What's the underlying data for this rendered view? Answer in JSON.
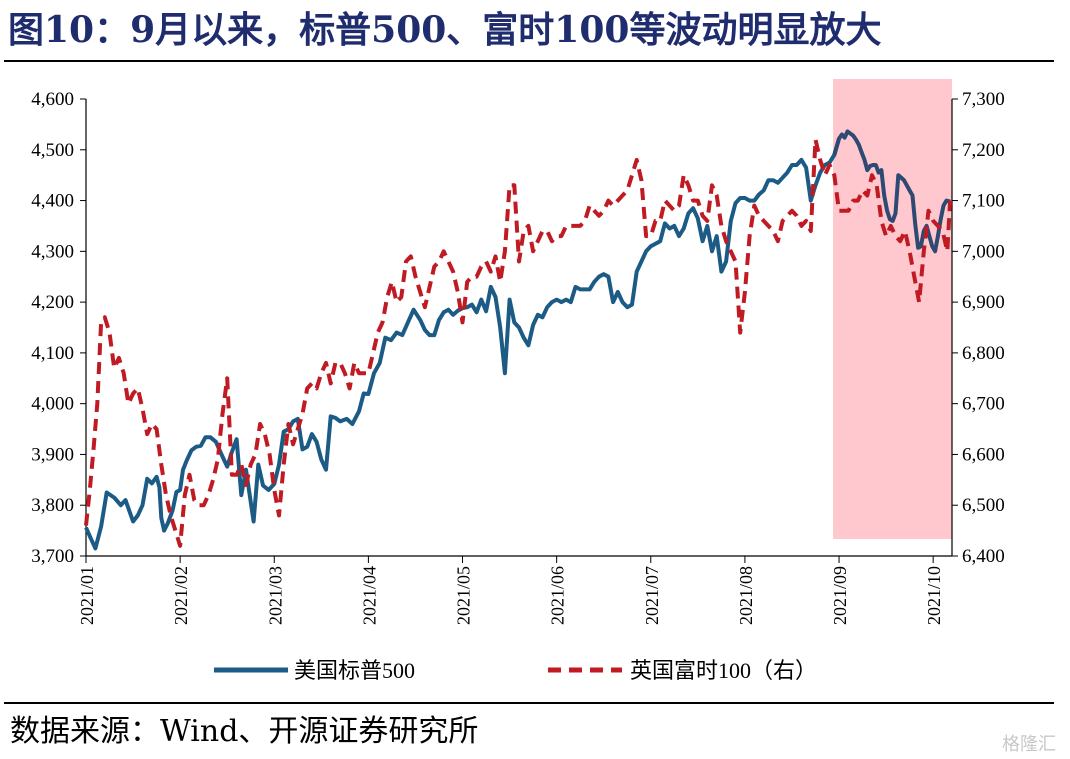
{
  "header": {
    "title": "图10：9月以来，标普500、富时100等波动明显放大"
  },
  "footer": {
    "source": "数据来源：Wind、开源证券研究所",
    "watermark": "格隆汇"
  },
  "chart_data": {
    "type": "line",
    "title": "",
    "x_labels": [
      "2021/01",
      "2021/02",
      "2021/03",
      "2021/04",
      "2021/05",
      "2021/06",
      "2021/07",
      "2021/08",
      "2021/09",
      "2021/10"
    ],
    "left_axis": {
      "ticks": [
        "3,700",
        "3,800",
        "3,900",
        "4,000",
        "4,100",
        "4,200",
        "4,300",
        "4,400",
        "4,500",
        "4,600"
      ],
      "ylim": [
        3700,
        4600
      ]
    },
    "right_axis": {
      "ticks": [
        "6,400",
        "6,500",
        "6,600",
        "6,700",
        "6,800",
        "6,900",
        "7,000",
        "7,100",
        "7,200",
        "7,300"
      ],
      "ylim": [
        6400,
        7300
      ]
    },
    "highlight": {
      "from": "2021/09",
      "to": "2021/10",
      "color": "#ffc7ce"
    },
    "legend_position": "bottom",
    "series": [
      {
        "name": "美国标普500",
        "axis": "left",
        "color": "#1c5b86",
        "color_highlight": "#2e4a72",
        "style": "solid",
        "x": [
          0,
          0.05,
          0.1,
          0.16,
          0.22,
          0.3,
          0.37,
          0.42,
          0.5,
          0.55,
          0.6,
          0.65,
          0.7,
          0.75,
          0.78,
          0.8,
          0.83,
          0.87,
          0.92,
          0.96,
          1.0,
          1.03,
          1.07,
          1.12,
          1.17,
          1.22,
          1.27,
          1.32,
          1.38,
          1.44,
          1.5,
          1.55,
          1.6,
          1.65,
          1.7,
          1.78,
          1.83,
          1.88,
          1.94,
          2.0,
          2.05,
          2.1,
          2.15,
          2.2,
          2.25,
          2.3,
          2.35,
          2.4,
          2.45,
          2.5,
          2.55,
          2.6,
          2.65,
          2.7,
          2.77,
          2.83,
          2.9,
          2.95,
          3.0,
          3.06,
          3.12,
          3.18,
          3.24,
          3.3,
          3.36,
          3.42,
          3.48,
          3.55,
          3.6,
          3.65,
          3.7,
          3.75,
          3.8,
          3.85,
          3.9,
          3.95,
          4.0,
          4.05,
          4.1,
          4.15,
          4.2,
          4.25,
          4.3,
          4.35,
          4.4,
          4.45,
          4.5,
          4.55,
          4.6,
          4.65,
          4.7,
          4.75,
          4.8,
          4.85,
          4.9,
          4.95,
          5.0,
          5.05,
          5.1,
          5.15,
          5.2,
          5.25,
          5.3,
          5.35,
          5.4,
          5.45,
          5.5,
          5.55,
          5.6,
          5.65,
          5.7,
          5.75,
          5.8,
          5.85,
          5.9,
          5.95,
          6.0,
          6.05,
          6.1,
          6.15,
          6.2,
          6.25,
          6.3,
          6.35,
          6.4,
          6.45,
          6.5,
          6.55,
          6.6,
          6.65,
          6.7,
          6.75,
          6.8,
          6.85,
          6.9,
          6.95,
          7.0,
          7.05,
          7.1,
          7.15,
          7.2,
          7.25,
          7.3,
          7.35,
          7.4,
          7.45,
          7.5,
          7.55,
          7.6,
          7.65,
          7.7,
          7.75,
          7.8,
          7.85,
          7.9,
          7.95,
          8.0,
          8.03,
          8.06,
          8.09,
          8.12,
          8.15,
          8.18,
          8.21,
          8.24,
          8.27,
          8.3,
          8.33,
          8.36,
          8.39,
          8.42,
          8.45,
          8.48,
          8.51,
          8.54,
          8.57,
          8.6,
          8.63,
          8.66,
          8.69,
          8.72,
          8.75,
          8.78,
          8.81,
          8.84,
          8.87,
          8.9,
          8.93,
          8.96,
          8.99,
          9.02,
          9.05,
          9.08,
          9.11,
          9.14,
          9.18
        ],
        "values": [
          3756,
          3735,
          3715,
          3758,
          3825,
          3815,
          3800,
          3810,
          3768,
          3780,
          3800,
          3852,
          3843,
          3856,
          3835,
          3775,
          3750,
          3765,
          3790,
          3826,
          3830,
          3870,
          3888,
          3908,
          3915,
          3917,
          3934,
          3934,
          3925,
          3900,
          3876,
          3905,
          3930,
          3820,
          3870,
          3768,
          3880,
          3839,
          3830,
          3842,
          3880,
          3945,
          3950,
          3965,
          3970,
          3910,
          3915,
          3940,
          3925,
          3890,
          3870,
          3975,
          3972,
          3965,
          3970,
          3960,
          3985,
          4020,
          4019,
          4060,
          4080,
          4130,
          4125,
          4140,
          4135,
          4160,
          4185,
          4165,
          4145,
          4135,
          4135,
          4165,
          4180,
          4185,
          4175,
          4183,
          4188,
          4190,
          4195,
          4180,
          4205,
          4182,
          4230,
          4210,
          4150,
          4060,
          4205,
          4160,
          4150,
          4130,
          4115,
          4155,
          4175,
          4170,
          4190,
          4200,
          4205,
          4200,
          4205,
          4200,
          4230,
          4225,
          4225,
          4225,
          4240,
          4250,
          4255,
          4250,
          4200,
          4220,
          4200,
          4190,
          4195,
          4260,
          4280,
          4300,
          4310,
          4315,
          4320,
          4355,
          4345,
          4350,
          4330,
          4345,
          4375,
          4385,
          4365,
          4320,
          4350,
          4300,
          4330,
          4260,
          4280,
          4360,
          4395,
          4405,
          4405,
          4400,
          4400,
          4412,
          4420,
          4440,
          4440,
          4435,
          4445,
          4455,
          4470,
          4470,
          4480,
          4465,
          4400,
          4430,
          4455,
          4470,
          4475,
          4490,
          4522,
          4530,
          4524,
          4536,
          4532,
          4528,
          4520,
          4510,
          4495,
          4480,
          4460,
          4468,
          4470,
          4470,
          4455,
          4460,
          4410,
          4380,
          4363,
          4360,
          4375,
          4450,
          4445,
          4440,
          4430,
          4420,
          4410,
          4352,
          4307,
          4310,
          4340,
          4350,
          4330,
          4310,
          4300,
          4330,
          4363,
          4390,
          4400,
          4398
        ]
      },
      {
        "name": "英国富时100（右）",
        "axis": "right",
        "color": "#c01a22",
        "style": "dashed",
        "x": [
          0,
          0.04,
          0.08,
          0.12,
          0.16,
          0.2,
          0.25,
          0.3,
          0.35,
          0.4,
          0.45,
          0.5,
          0.55,
          0.6,
          0.65,
          0.7,
          0.75,
          0.8,
          0.85,
          0.9,
          0.95,
          1.0,
          1.05,
          1.1,
          1.15,
          1.2,
          1.25,
          1.3,
          1.35,
          1.4,
          1.45,
          1.5,
          1.55,
          1.6,
          1.65,
          1.7,
          1.75,
          1.8,
          1.85,
          1.9,
          1.95,
          2.0,
          2.05,
          2.1,
          2.15,
          2.2,
          2.25,
          2.3,
          2.35,
          2.4,
          2.45,
          2.5,
          2.55,
          2.6,
          2.65,
          2.7,
          2.75,
          2.8,
          2.85,
          2.9,
          2.95,
          3.0,
          3.05,
          3.1,
          3.15,
          3.2,
          3.25,
          3.3,
          3.35,
          3.4,
          3.45,
          3.5,
          3.55,
          3.6,
          3.65,
          3.7,
          3.75,
          3.8,
          3.85,
          3.9,
          3.95,
          4.0,
          4.05,
          4.1,
          4.15,
          4.2,
          4.25,
          4.3,
          4.35,
          4.4,
          4.45,
          4.5,
          4.55,
          4.6,
          4.65,
          4.7,
          4.75,
          4.8,
          4.85,
          4.9,
          4.95,
          5.0,
          5.05,
          5.1,
          5.15,
          5.2,
          5.25,
          5.3,
          5.35,
          5.4,
          5.45,
          5.5,
          5.55,
          5.6,
          5.65,
          5.7,
          5.75,
          5.8,
          5.85,
          5.9,
          5.95,
          6.0,
          6.05,
          6.1,
          6.15,
          6.2,
          6.25,
          6.3,
          6.35,
          6.4,
          6.45,
          6.5,
          6.55,
          6.6,
          6.65,
          6.7,
          6.75,
          6.8,
          6.85,
          6.9,
          6.95,
          7.0,
          7.05,
          7.1,
          7.15,
          7.2,
          7.25,
          7.3,
          7.35,
          7.4,
          7.45,
          7.5,
          7.55,
          7.6,
          7.65,
          7.7,
          7.75,
          7.8,
          7.85,
          7.9,
          7.95,
          8.0,
          8.05,
          8.1,
          8.15,
          8.2,
          8.25,
          8.3,
          8.35,
          8.4,
          8.45,
          8.5,
          8.55,
          8.6,
          8.65,
          8.7,
          8.75,
          8.8,
          8.85,
          8.9,
          8.95,
          9.0,
          9.05,
          9.1,
          9.15,
          9.18
        ],
        "values": [
          6460,
          6530,
          6610,
          6700,
          6860,
          6870,
          6840,
          6770,
          6790,
          6760,
          6700,
          6720,
          6730,
          6690,
          6640,
          6660,
          6650,
          6580,
          6520,
          6480,
          6450,
          6420,
          6520,
          6560,
          6510,
          6500,
          6500,
          6520,
          6550,
          6590,
          6680,
          6750,
          6560,
          6560,
          6580,
          6540,
          6580,
          6600,
          6660,
          6640,
          6600,
          6530,
          6480,
          6580,
          6660,
          6620,
          6650,
          6680,
          6730,
          6740,
          6730,
          6760,
          6780,
          6740,
          6780,
          6780,
          6760,
          6730,
          6780,
          6760,
          6760,
          6760,
          6800,
          6840,
          6860,
          6910,
          6940,
          6900,
          6910,
          6980,
          6990,
          6950,
          6920,
          6890,
          6930,
          6970,
          6980,
          7000,
          6980,
          6960,
          6920,
          6860,
          6940,
          6950,
          6950,
          6970,
          6980,
          6960,
          6990,
          6940,
          7000,
          7130,
          7130,
          6980,
          7040,
          7050,
          7000,
          7020,
          7040,
          7040,
          7020,
          7030,
          7030,
          7050,
          7050,
          7050,
          7050,
          7060,
          7090,
          7080,
          7070,
          7080,
          7100,
          7090,
          7100,
          7110,
          7120,
          7150,
          7180,
          7140,
          7030,
          7030,
          7060,
          7060,
          7100,
          7090,
          7080,
          7090,
          7150,
          7130,
          7100,
          7100,
          7070,
          7060,
          7130,
          7110,
          7050,
          7020,
          7000,
          6980,
          6840,
          6920,
          7030,
          7090,
          7070,
          7060,
          7050,
          7040,
          7020,
          7060,
          7070,
          7080,
          7070,
          7050,
          7060,
          7040,
          7220,
          7180,
          7150,
          7170,
          7150,
          7080,
          7080,
          7080,
          7100,
          7100,
          7120,
          7110,
          7150,
          7130,
          7060,
          7030,
          7050,
          7030,
          7020,
          7040,
          7000,
          6950,
          6900,
          7000,
          7080,
          7060,
          7050,
          7040,
          7000,
          7100
        ]
      }
    ]
  }
}
